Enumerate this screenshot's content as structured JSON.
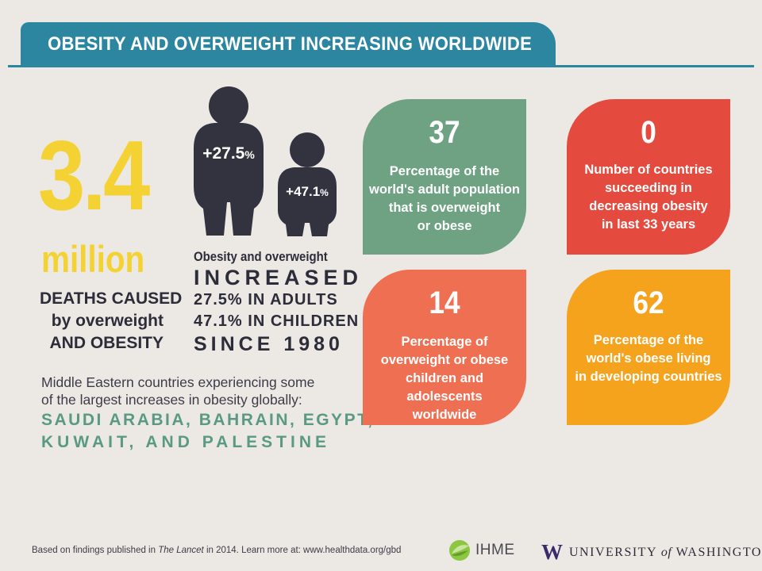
{
  "header": {
    "title": "OBESITY AND OVERWEIGHT INCREASING WORLDWIDE"
  },
  "left": {
    "big_number": "3.4",
    "million": "million",
    "deaths_lines": [
      "DEATHS CAUSED",
      "by overweight",
      "AND OBESITY"
    ]
  },
  "figures": {
    "adult_label": "+27.5",
    "adult_pct": "%",
    "child_label": "+47.1",
    "child_pct": "%"
  },
  "increase": {
    "line1": "Obesity and overweight",
    "line2": "INCREASED",
    "line3": "27.5% IN ADULTS",
    "line4": "47.1% IN CHILDREN",
    "line5": "SINCE 1980"
  },
  "mideast": {
    "lines": [
      "Middle Eastern countries experiencing some",
      "of the largest increases in obesity globally:"
    ],
    "countries": [
      "SAUDI ARABIA, BAHRAIN, EGYPT,",
      "KUWAIT, AND PALESTINE"
    ]
  },
  "cards": [
    {
      "number": "37",
      "lines": [
        "Percentage of the",
        "world's adult population",
        "that is overweight",
        "or obese"
      ],
      "color": "#6ea283"
    },
    {
      "number": "0",
      "lines": [
        "Number of countries",
        "succeeding in",
        "decreasing obesity",
        "in last 33 years"
      ],
      "color": "#e44a3e"
    },
    {
      "number": "14",
      "lines": [
        "Percentage of",
        "overweight or obese",
        "children and adolescents",
        "worldwide"
      ],
      "color": "#ef6f53"
    },
    {
      "number": "62",
      "lines": [
        "Percentage of the",
        "world's obese living",
        "in developing countries"
      ],
      "color": "#f5a21d"
    }
  ],
  "footer": {
    "note_prefix": "Based on findings published in ",
    "note_journal": "The Lancet",
    "note_suffix": " in 2014. Learn more at: www.healthdata.org/gbd",
    "ihme": "IHME",
    "uw_w": "W",
    "uw_pre": "UNIVERSITY ",
    "uw_of": "of",
    "uw_post": " WASHINGTON"
  },
  "colors": {
    "teal": "#2d86a0",
    "yellow": "#f5d234",
    "figure": "#33333f"
  }
}
